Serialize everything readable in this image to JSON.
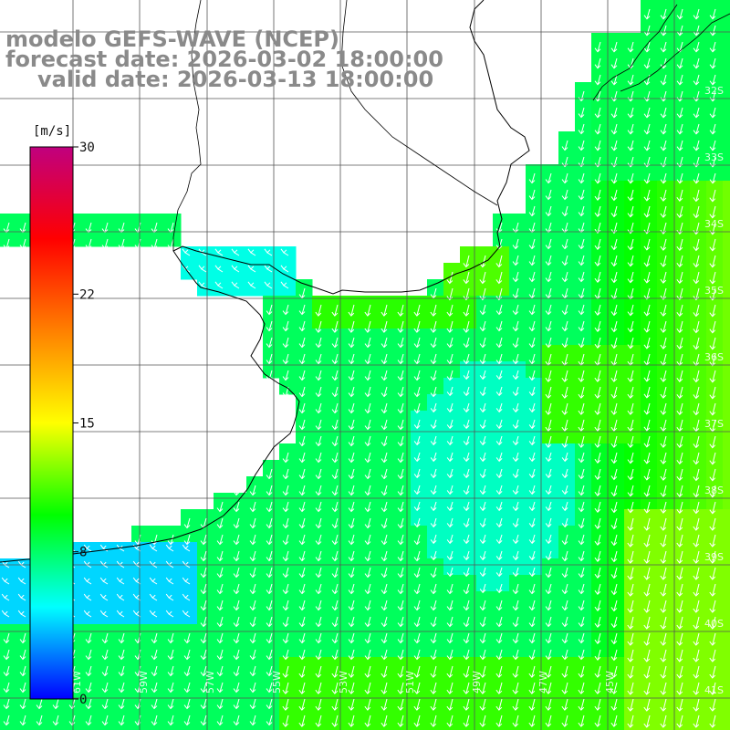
{
  "titles": {
    "model": "modelo GEFS-WAVE (NCEP)",
    "forecast": "forecast date: 2026-03-02 18:00:00",
    "valid": "valid date: 2026-03-13 18:00:00"
  },
  "colorbar": {
    "unit": "[m/s]",
    "ticks": [
      {
        "value": 30,
        "label": "30"
      },
      {
        "value": 22,
        "label": "22"
      },
      {
        "value": 15,
        "label": "15"
      },
      {
        "value": 8,
        "label": "8"
      },
      {
        "value": 0,
        "label": "0"
      }
    ],
    "min": 0,
    "max": 30,
    "colors": [
      "#0000ff",
      "#00ffff",
      "#00ff00",
      "#ffff00",
      "#ff8000",
      "#ff0000",
      "#c0007f"
    ]
  },
  "lat_labels": [
    "32S",
    "33S",
    "34S",
    "35S",
    "36S",
    "37S",
    "38S",
    "39S",
    "40S",
    "41S"
  ],
  "lon_labels": [
    "61W",
    "59W",
    "57W",
    "55W",
    "53W",
    "51W",
    "49W",
    "47W",
    "45W"
  ],
  "field": {
    "quantity": "wind speed",
    "units": "m/s",
    "regions": [
      {
        "area": "Rio de la Plata",
        "speed": 7
      },
      {
        "area": "coastal Brazil",
        "speed": 11
      },
      {
        "area": "eastern offshore band",
        "speed": 13
      },
      {
        "area": "southwest coastal",
        "speed": 5
      }
    ],
    "arrow_direction": "toward south-southwest"
  }
}
